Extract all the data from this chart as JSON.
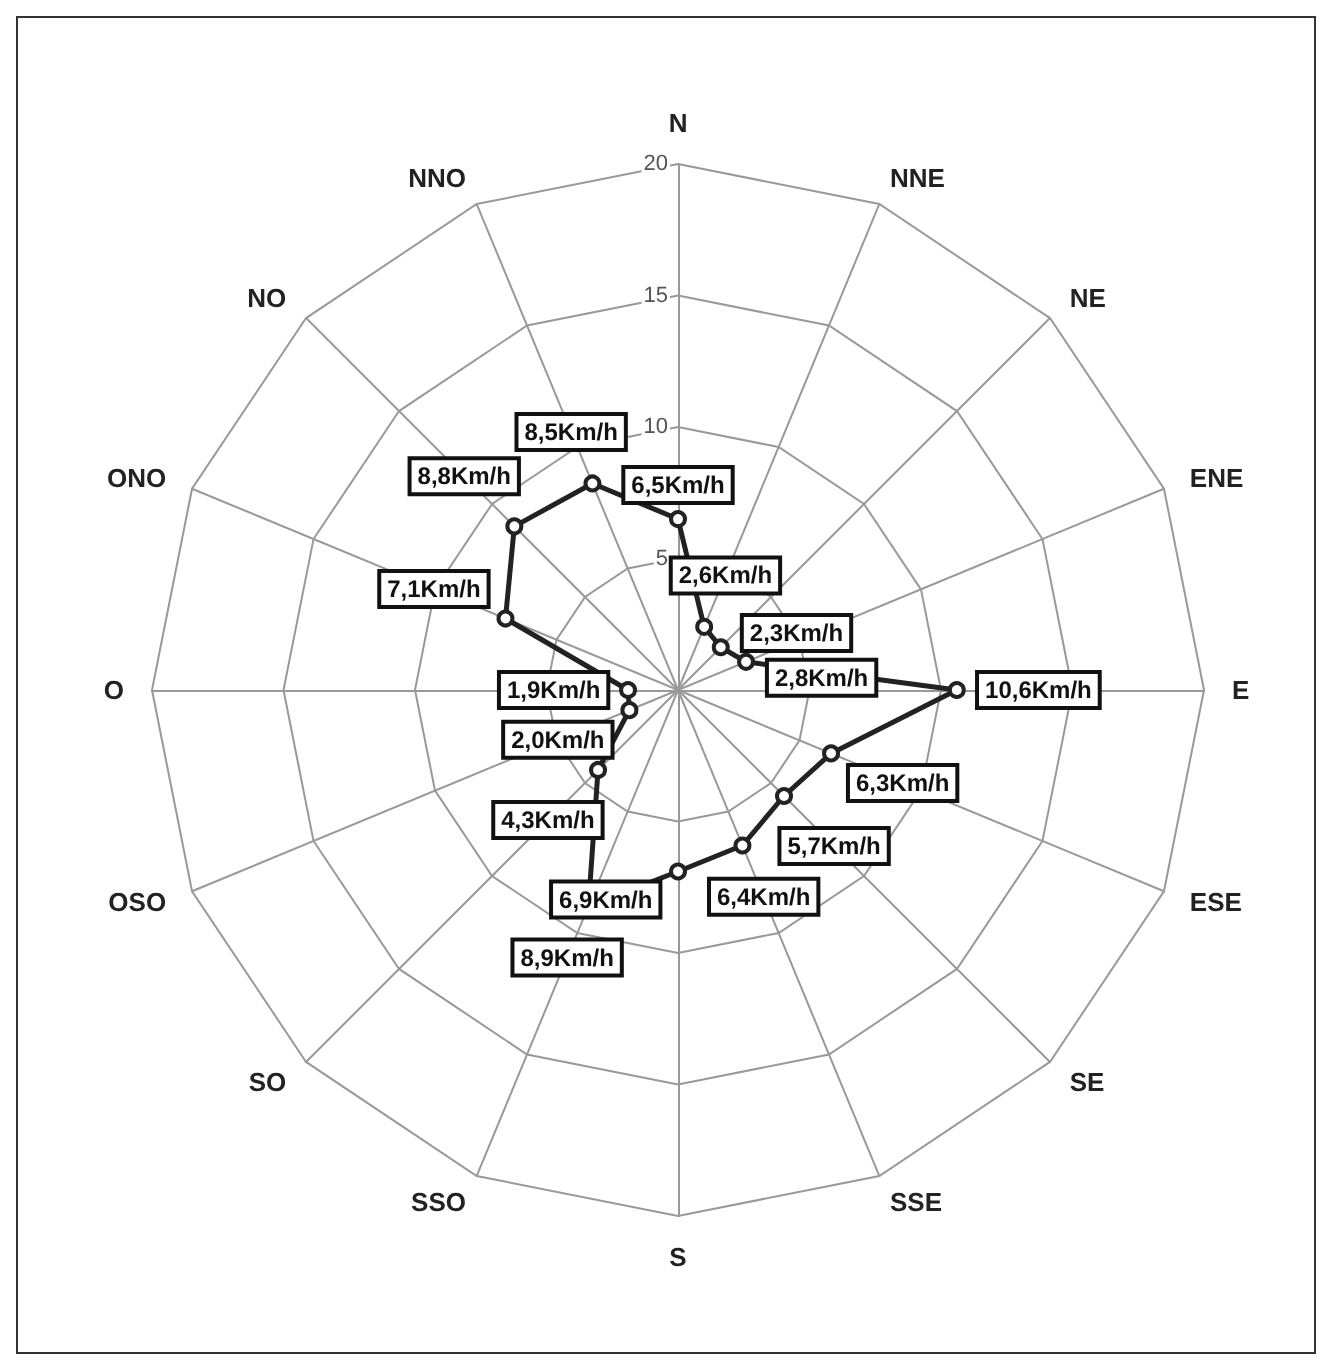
{
  "chart_data": {
    "type": "radar",
    "categories": [
      "N",
      "NNE",
      "NE",
      "ENE",
      "E",
      "ESE",
      "SE",
      "SSE",
      "S",
      "SSO",
      "SO",
      "OSO",
      "O",
      "ONO",
      "NO",
      "NNO"
    ],
    "series": [
      {
        "color": "#222222",
        "values": [
          6.5,
          2.6,
          2.3,
          2.8,
          10.6,
          6.3,
          5.7,
          6.4,
          6.9,
          8.9,
          4.3,
          2.0,
          1.9,
          7.1,
          8.8,
          8.5
        ],
        "value_labels": [
          "6,5Km/h",
          "2,6Km/h",
          "2,3Km/h",
          "2,8Km/h",
          "10,6Km/h",
          "6,3Km/h",
          "5,7Km/h",
          "6,4Km/h",
          "6,9Km/h",
          "8,9Km/h",
          "4,3Km/h",
          "2,0Km/h",
          "1,9Km/h",
          "7,1Km/h",
          "8,8Km/h",
          "8,5Km/h"
        ]
      }
    ],
    "ylim": [
      0,
      20
    ],
    "yticks": [
      5,
      10,
      15,
      20
    ],
    "grid": true,
    "marker": "circle",
    "line_style": "solid"
  }
}
